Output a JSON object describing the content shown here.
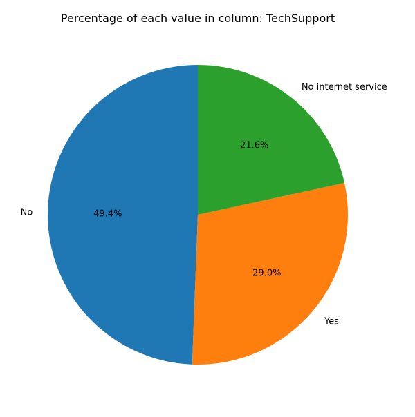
{
  "chart_data": {
    "type": "pie",
    "title": "Percentage of each value in column: TechSupport",
    "categories": [
      "No",
      "Yes",
      "No internet service"
    ],
    "values": [
      49.4,
      29.0,
      21.6
    ],
    "value_labels": [
      "49.4%",
      "29.0%",
      "21.6%"
    ],
    "colors": [
      "#1f77b4",
      "#ff7f0e",
      "#2ca02c"
    ],
    "start_angle_deg": 90,
    "direction": "counterclockwise",
    "legend": "none"
  }
}
